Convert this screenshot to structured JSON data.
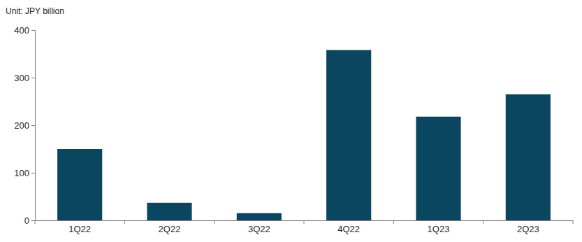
{
  "chart_data": {
    "type": "bar",
    "ylabel": "Unit: JPY billion",
    "categories": [
      "1Q22",
      "2Q22",
      "3Q22",
      "4Q22",
      "1Q23",
      "2Q23"
    ],
    "values": [
      150,
      37,
      15,
      358,
      218,
      265
    ],
    "color": "#0b4661",
    "ylim": [
      0,
      400
    ],
    "yticks": [
      0,
      100,
      200,
      300,
      400
    ],
    "grid": false
  }
}
